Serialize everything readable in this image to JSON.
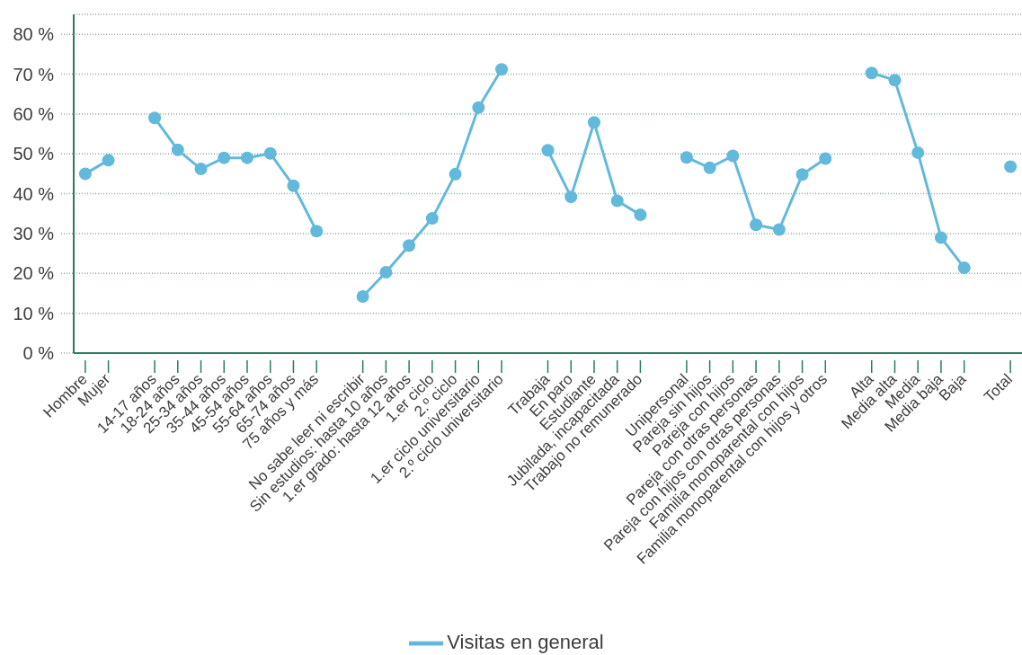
{
  "chart_data": {
    "type": "line",
    "categories": [
      "Hombre",
      "Mujer",
      null,
      "14-17 años",
      "18-24 años",
      "25-34 años",
      "35-44 años",
      "45-54 años",
      "55-64 años",
      "65-74 años",
      "75 años y más",
      null,
      "No sabe leer ni escribir",
      "Sin estudios: hasta 10 años",
      "1.er grado: hasta 12 años",
      "1.er ciclo",
      "2.º ciclo",
      "1.er ciclo universitario",
      "2.º ciclo universitario",
      null,
      "Trabaja",
      "En paro",
      "Estudiante",
      "Jubilada, incapacitada",
      "Trabajo no remunerado",
      null,
      "Unipersonal",
      "Pareja sin hijos",
      "Pareja con hijos",
      "Pareja con otras personas",
      "Pareja con hijos con otras personas",
      "Familia monoparental con hijos",
      "Familia monoparental con hijos y otros",
      null,
      "Alta",
      "Media alta",
      "Media",
      "Media baja",
      "Baja",
      null,
      "Total"
    ],
    "series": [
      {
        "name": "Visitas en general",
        "color": "#62b9db",
        "values": [
          45.0,
          48.4,
          null,
          59.0,
          51.0,
          46.2,
          49.0,
          49.0,
          50.1,
          42.0,
          30.6,
          null,
          14.2,
          20.3,
          27.0,
          33.8,
          44.9,
          61.6,
          71.2,
          null,
          50.9,
          39.2,
          57.9,
          38.2,
          34.7,
          null,
          49.1,
          46.5,
          49.5,
          32.2,
          31.0,
          44.8,
          48.8,
          null,
          70.3,
          68.5,
          50.3,
          29.0,
          21.4,
          null,
          46.8
        ]
      }
    ],
    "ylim": [
      0,
      85
    ],
    "yticks": [
      {
        "value": 0,
        "label": "0 %"
      },
      {
        "value": 10,
        "label": "10 %"
      },
      {
        "value": 20,
        "label": "20 %"
      },
      {
        "value": 30,
        "label": "30 %"
      },
      {
        "value": 40,
        "label": "40 %"
      },
      {
        "value": 50,
        "label": "50 %"
      },
      {
        "value": 60,
        "label": "60 %"
      },
      {
        "value": 70,
        "label": "70 %"
      },
      {
        "value": 80,
        "label": "80 %"
      }
    ],
    "grid": "y",
    "legend": "bottom",
    "marker": "circle",
    "line_style": "solid"
  }
}
